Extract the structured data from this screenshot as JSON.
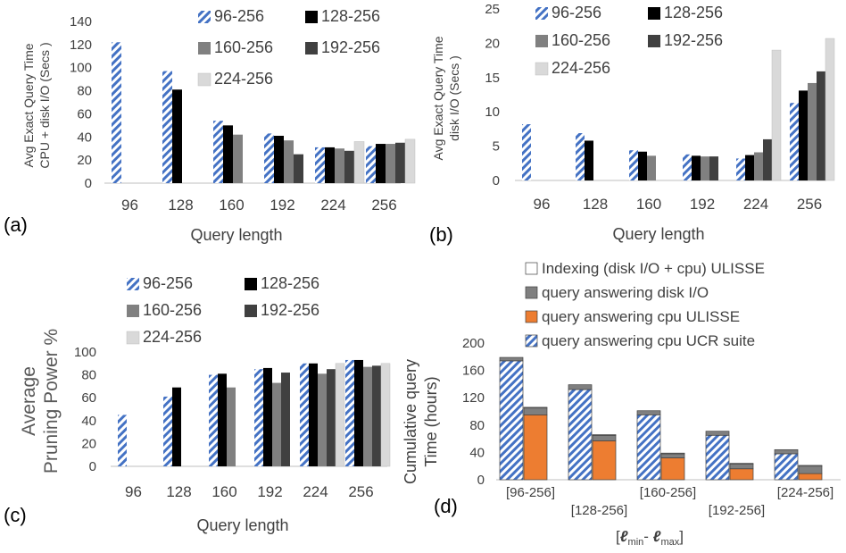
{
  "colors": {
    "s96": "hatch-blue",
    "s128": "#000000",
    "s160": "#808080",
    "s192": "#404040",
    "s224": "#d9d9d9",
    "hatch_stripe": "#4472c4",
    "ulisse_cpu": "#ed7d31",
    "disk_io": "#7f7f7f",
    "indexing": "#ffffff",
    "text": "#404040"
  },
  "chart_data": [
    {
      "id": "a",
      "type": "bar",
      "panel_label": "(a)",
      "ylabel": [
        "Avg Exact Query Time",
        "CPU + disk I/O (Secs )"
      ],
      "xlabel": "Query length",
      "categories": [
        "96",
        "128",
        "160",
        "192",
        "224",
        "256"
      ],
      "yticks": [
        "0",
        "20",
        "40",
        "60",
        "80",
        "100",
        "120",
        "140"
      ],
      "ylim": [
        0,
        140
      ],
      "legend_position": "top-right",
      "series": [
        {
          "name": "96-256",
          "color_key": "s96",
          "values": [
            122,
            97,
            54,
            43,
            31,
            32
          ]
        },
        {
          "name": "128-256",
          "color_key": "s128",
          "values": [
            null,
            81,
            50,
            41,
            31,
            34
          ]
        },
        {
          "name": "160-256",
          "color_key": "s160",
          "values": [
            null,
            null,
            42,
            37,
            30,
            34
          ]
        },
        {
          "name": "192-256",
          "color_key": "s192",
          "values": [
            null,
            null,
            null,
            25,
            28,
            35
          ]
        },
        {
          "name": "224-256",
          "color_key": "s224",
          "values": [
            null,
            null,
            null,
            null,
            36,
            38
          ]
        }
      ]
    },
    {
      "id": "b",
      "type": "bar",
      "panel_label": "(b)",
      "ylabel": [
        "Avg Exact  Query Time",
        "disk I/O (Secs )"
      ],
      "xlabel": "Query length",
      "categories": [
        "96",
        "128",
        "160",
        "192",
        "224",
        "256"
      ],
      "yticks": [
        "0",
        "5",
        "10",
        "15",
        "20",
        "25"
      ],
      "ylim": [
        0,
        25
      ],
      "legend_position": "top-left",
      "series": [
        {
          "name": "96-256",
          "color_key": "s96",
          "values": [
            8.2,
            6.9,
            4.4,
            3.8,
            3.2,
            11.3
          ]
        },
        {
          "name": "128-256",
          "color_key": "s128",
          "values": [
            null,
            5.8,
            4.2,
            3.6,
            3.7,
            13.1
          ]
        },
        {
          "name": "160-256",
          "color_key": "s160",
          "values": [
            null,
            null,
            3.6,
            3.5,
            4.1,
            14.2
          ]
        },
        {
          "name": "192-256",
          "color_key": "s192",
          "values": [
            null,
            null,
            null,
            3.5,
            6.0,
            15.9
          ]
        },
        {
          "name": "224-256",
          "color_key": "s224",
          "values": [
            null,
            null,
            null,
            null,
            19.0,
            20.7
          ]
        }
      ]
    },
    {
      "id": "c",
      "type": "bar",
      "panel_label": "(c)",
      "ylabel": [
        "Average",
        "Pruning Power %"
      ],
      "xlabel": "Query length",
      "categories": [
        "96",
        "128",
        "160",
        "192",
        "224",
        "256"
      ],
      "yticks": [
        "0",
        "20",
        "40",
        "60",
        "80",
        "100"
      ],
      "ylim": [
        0,
        100
      ],
      "legend_position": "top",
      "series": [
        {
          "name": "96-256",
          "color_key": "s96",
          "values": [
            45,
            61,
            80,
            85,
            90,
            93
          ]
        },
        {
          "name": "128-256",
          "color_key": "s128",
          "values": [
            null,
            69,
            81,
            86,
            90,
            93
          ]
        },
        {
          "name": "160-256",
          "color_key": "s160",
          "values": [
            null,
            null,
            69,
            73,
            81,
            87
          ]
        },
        {
          "name": "192-256",
          "color_key": "s192",
          "values": [
            null,
            null,
            null,
            82,
            85,
            88
          ]
        },
        {
          "name": "224-256",
          "color_key": "s224",
          "values": [
            null,
            null,
            null,
            null,
            90,
            90
          ]
        }
      ]
    },
    {
      "id": "d",
      "type": "bar",
      "stacked": true,
      "panel_label": "(d)",
      "ylabel": [
        "Cumulative query",
        "Time (hours)"
      ],
      "xlabel": "[ℓmin - ℓmax]",
      "xlabel_parts": [
        "[",
        "ℓ",
        "min",
        "- ",
        "ℓ",
        "max",
        "]"
      ],
      "categories": [
        "[96-256]",
        "[128-256]",
        "[160-256]",
        "[192-256]",
        "[224-256]"
      ],
      "yticks": [
        "0",
        "40",
        "80",
        "120",
        "160",
        "200"
      ],
      "ylim": [
        0,
        200
      ],
      "legend_position": "top",
      "legend_order": [
        "Indexing (disk I/O + cpu) ULISSE",
        "query answering disk I/O",
        "query answering cpu ULISSE",
        "query answering cpu UCR suite"
      ],
      "groups": [
        {
          "name": "UCR suite",
          "stack": [
            {
              "series": "query answering cpu UCR suite",
              "color_key": "s96",
              "values": [
                174,
                132,
                95,
                65,
                38
              ]
            },
            {
              "series": "query answering disk I/O",
              "color_key": "disk_io",
              "values": [
                5,
                7,
                6,
                6,
                6
              ]
            }
          ]
        },
        {
          "name": "ULISSE",
          "stack": [
            {
              "series": "query answering cpu ULISSE",
              "color_key": "ulisse_cpu",
              "values": [
                95,
                57,
                32,
                16,
                9
              ]
            },
            {
              "series": "query answering disk I/O",
              "color_key": "disk_io",
              "values": [
                10,
                8,
                6,
                7,
                11
              ]
            },
            {
              "series": "Indexing (disk I/O + cpu) ULISSE",
              "color_key": "indexing",
              "values": [
                1,
                1,
                1,
                1,
                1
              ]
            }
          ]
        }
      ]
    }
  ]
}
